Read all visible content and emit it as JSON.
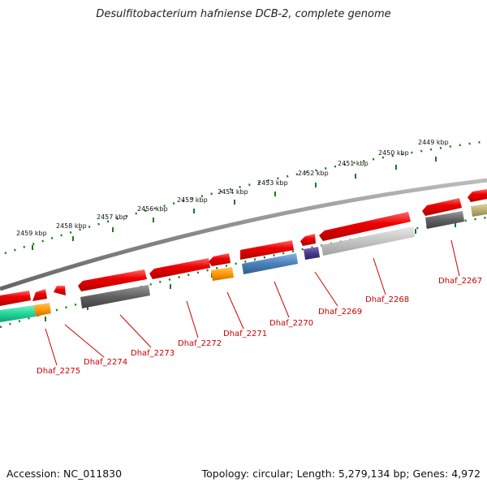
{
  "title": "Desulfitobacterium hafniense DCB-2, complete genome",
  "footer": {
    "accession": "Accession: NC_011830",
    "summary": "Topology: circular; Length: 5,279,134 bp; Genes: 4,972"
  },
  "colors": {
    "backbone": "#888888",
    "tick": "#1a7a1a",
    "label": "#cc0000",
    "gene_red": "#ee0000",
    "gene_dark_gray": "#606060",
    "gene_light_gray": "#c4c4c4",
    "gene_blue": "#4a80b8",
    "gene_purple": "#4a3a8a",
    "gene_orange": "#ff9900",
    "gene_teal": "#1fd69a",
    "gene_olive": "#b8b070"
  },
  "kbp_labels": [
    "2459 kbp",
    "2458 kbp",
    "2457 kbp",
    "2456 kbp",
    "2455 kbp",
    "2454 kbp",
    "2453 kbp",
    "2452 kbp",
    "2451 kbp",
    "2450 kbp",
    "2449 kbp"
  ],
  "genes": [
    {
      "id": "Dhaf_2275",
      "lane": "outer_left",
      "color": "gene_red"
    },
    {
      "id": "Dhaf_2274",
      "lane": "outer_left",
      "color": "gene_red"
    },
    {
      "id": "Dhaf_2273",
      "lane": "outer_left",
      "color": "gene_red"
    },
    {
      "id": "Dhaf_2272",
      "lane": "outer_left",
      "color": "gene_red"
    },
    {
      "id": "Dhaf_2271",
      "lane": "outer_left",
      "color": "gene_red"
    },
    {
      "id": "Dhaf_2270",
      "lane": "outer_left",
      "color": "gene_red"
    },
    {
      "id": "Dhaf_2269",
      "lane": "outer_left",
      "color": "gene_red"
    },
    {
      "id": "Dhaf_2268",
      "lane": "outer_left",
      "color": "gene_red"
    },
    {
      "id": "Dhaf_2267",
      "lane": "outer_left",
      "color": "gene_red"
    }
  ],
  "gene_labels": [
    "Dhaf_2275",
    "Dhaf_2274",
    "Dhaf_2273",
    "Dhaf_2272",
    "Dhaf_2271",
    "Dhaf_2270",
    "Dhaf_2269",
    "Dhaf_2268",
    "Dhaf_2267"
  ]
}
